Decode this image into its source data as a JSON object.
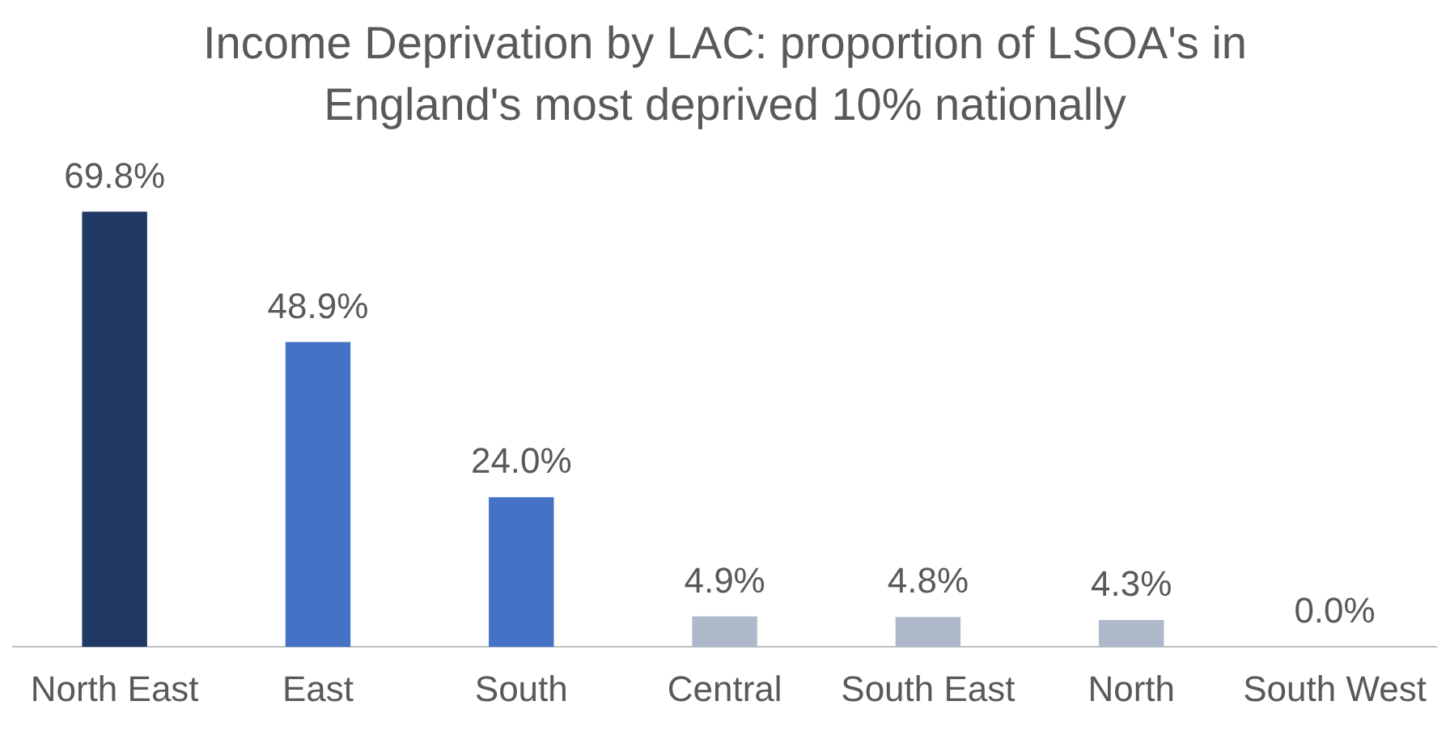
{
  "chart_data": {
    "type": "bar",
    "title": "Income Deprivation by LAC: proportion of LSOA's in England's most deprived 10% nationally",
    "categories": [
      "North East",
      "East",
      "South",
      "Central",
      "South East",
      "North",
      "South West"
    ],
    "values": [
      69.8,
      48.9,
      24.0,
      4.9,
      4.8,
      4.3,
      0.0
    ],
    "colors": [
      "#203864",
      "#4472c4",
      "#4472c4",
      "#adb9ca",
      "#adb9ca",
      "#adb9ca",
      "#adb9ca"
    ],
    "value_labels": [
      "69.8%",
      "48.9%",
      "24.0%",
      "4.9%",
      "4.8%",
      "4.3%",
      "0.0%"
    ],
    "grid": false,
    "legend": false,
    "tick_labels": "x"
  }
}
